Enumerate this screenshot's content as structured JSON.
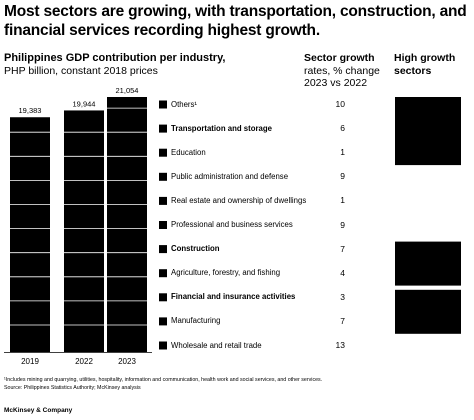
{
  "title": "Most sectors are growing, with transportation, construction, and financial services recording highest growth.",
  "left_header": {
    "title": "Philippines GDP contribution per industry,",
    "subtitle": "PHP billion, constant 2018 prices"
  },
  "growth_header": {
    "line1": "Sector growth",
    "line2": "rates, % change",
    "line3": "2023 vs 2022"
  },
  "high_growth_header": {
    "line1": "High growth",
    "line2": "sectors"
  },
  "colors": {
    "bar": "#000000",
    "bar_gap": "#ffffff",
    "box": "#000000"
  },
  "chart_data": {
    "type": "bar",
    "stacked": true,
    "categories": [
      "2019",
      "2022",
      "2023"
    ],
    "totals": [
      19383,
      19944,
      21054
    ],
    "total_labels": [
      "19,383",
      "19,944",
      "21,054"
    ],
    "series": [
      {
        "name": "Others¹",
        "growth": "10",
        "high_growth": true,
        "bold": false
      },
      {
        "name": "Transportation and storage",
        "growth": "6",
        "high_growth": true,
        "bold": true
      },
      {
        "name": "Education",
        "growth": "1",
        "high_growth": false,
        "bold": false
      },
      {
        "name": "Public administration and defense",
        "growth": "9",
        "high_growth": false,
        "bold": false
      },
      {
        "name": "Real estate and ownership of dwellings",
        "growth": "1",
        "high_growth": false,
        "bold": false
      },
      {
        "name": "Professional and business services",
        "growth": "9",
        "high_growth": false,
        "bold": false
      },
      {
        "name": "Construction",
        "growth": "7",
        "high_growth": true,
        "bold": true
      },
      {
        "name": "Agriculture, forestry, and fishing",
        "growth": "4",
        "high_growth": false,
        "bold": false
      },
      {
        "name": "Financial and insurance activities",
        "growth": "3",
        "high_growth": true,
        "bold": true
      },
      {
        "name": "Manufacturing",
        "growth": "7",
        "high_growth": false,
        "bold": false
      },
      {
        "name": "Wholesale and retail trade",
        "growth": "13",
        "high_growth": false,
        "bold": false
      }
    ]
  },
  "footnote": {
    "line1": "¹Includes mining and quarrying, utilities, hospitality, information and communication, health work and social services, and other services.",
    "line2": "Source: Philippines Statistics Authority; McKinsey analysis"
  },
  "brand": "McKinsey & Company"
}
